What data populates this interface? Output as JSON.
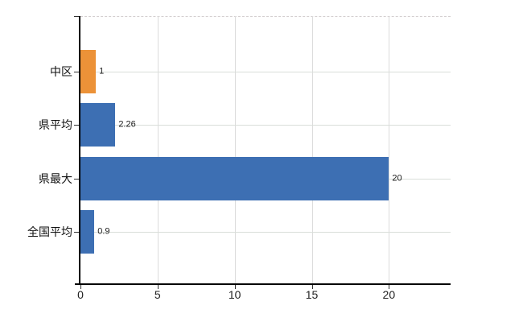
{
  "chart_data": {
    "type": "bar",
    "orientation": "horizontal",
    "title": "",
    "xlabel": "",
    "ylabel": "",
    "categories": [
      "中区",
      "県平均",
      "県最大",
      "全国平均"
    ],
    "values": [
      1,
      2.26,
      20,
      0.9
    ],
    "value_labels": [
      "1",
      "2.26",
      "20",
      "0.9"
    ],
    "bar_colors": [
      "#ec9238",
      "#3d6fb3",
      "#3d6fb3",
      "#3d6fb3"
    ],
    "x_ticks": [
      0,
      5,
      10,
      15,
      20
    ],
    "x_tick_labels": [
      "0",
      "5",
      "10",
      "15",
      "20"
    ],
    "xlim": [
      0,
      24
    ],
    "grid": true,
    "legend": "none",
    "colors": {
      "axis": "#000000",
      "gridline": "#dcdcdc",
      "background": "#ffffff",
      "text": "#111111"
    }
  }
}
